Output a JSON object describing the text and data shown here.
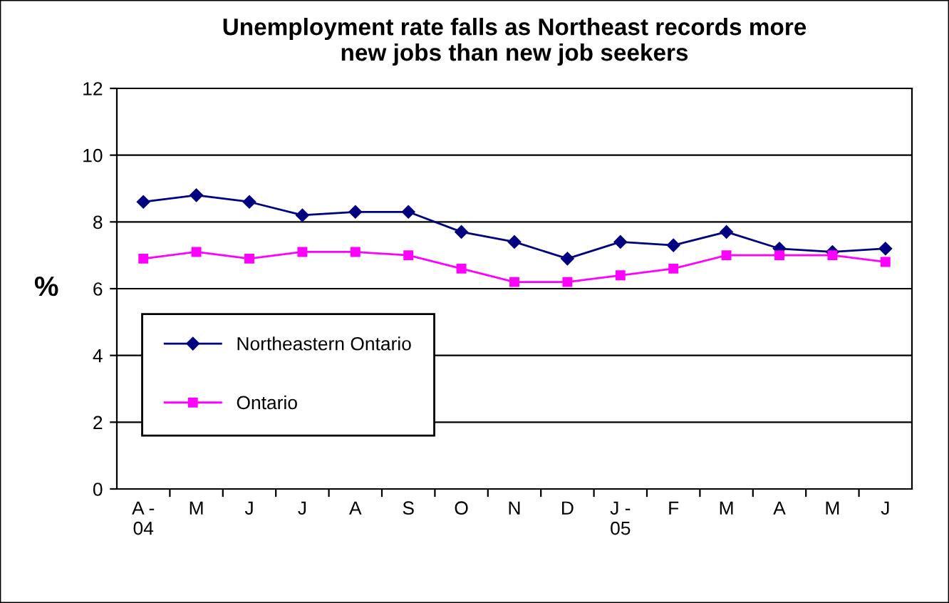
{
  "chart_data": {
    "type": "line",
    "title": "Unemployment rate falls as Northeast records more\nnew jobs than new job seekers",
    "ylabel": "%",
    "categories": [
      "A -\n04",
      "M",
      "J",
      "J",
      "A",
      "S",
      "O",
      "N",
      "D",
      "J -\n05",
      "F",
      "M",
      "A",
      "M",
      "J"
    ],
    "series": [
      {
        "name": "Northeastern Ontario",
        "color": "#000080",
        "marker": "diamond",
        "values": [
          8.6,
          8.8,
          8.6,
          8.2,
          8.3,
          8.3,
          7.7,
          7.4,
          6.9,
          7.4,
          7.3,
          7.7,
          7.2,
          7.1,
          7.2
        ]
      },
      {
        "name": "Ontario",
        "color": "#ff00ff",
        "marker": "square",
        "values": [
          6.9,
          7.1,
          6.9,
          7.1,
          7.1,
          7.0,
          6.6,
          6.2,
          6.2,
          6.4,
          6.6,
          7.0,
          7.0,
          7.0,
          6.8
        ]
      }
    ],
    "ylim": [
      0,
      12
    ],
    "yticks": [
      0,
      2,
      4,
      6,
      8,
      10,
      12
    ],
    "grid": "y",
    "legend": "center left"
  }
}
